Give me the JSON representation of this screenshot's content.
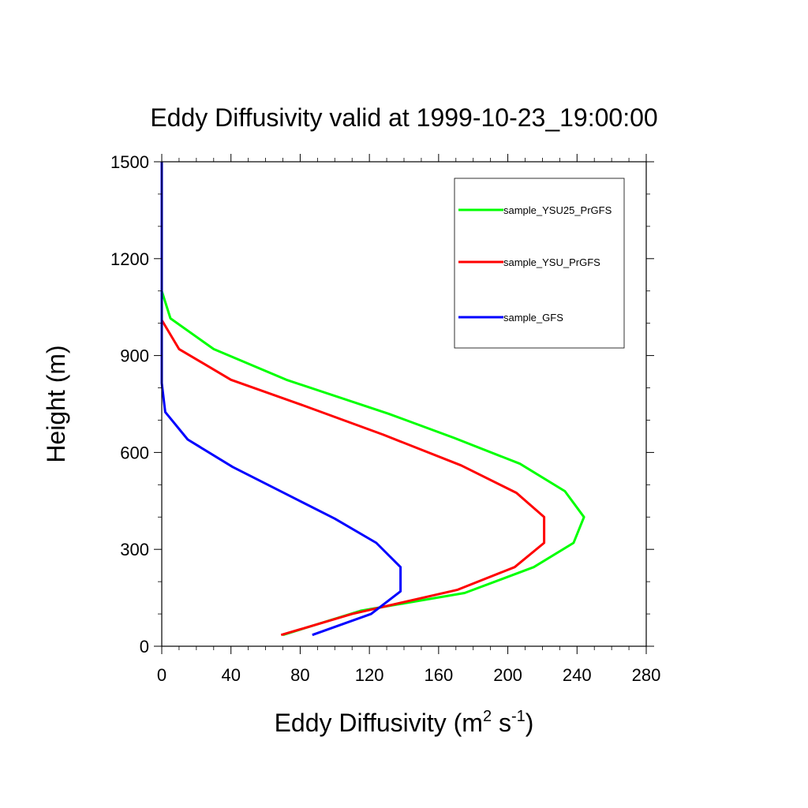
{
  "chart_data": {
    "type": "line",
    "title": "Eddy Diffusivity valid at 1999-10-23_19:00:00",
    "xlabel": {
      "base": "Eddy Diffusivity (m",
      "sup1": "2",
      "mid": " s",
      "sup2": "-1",
      "end": ")"
    },
    "ylabel": "Height (m)",
    "xlim": [
      0,
      280
    ],
    "ylim": [
      0,
      1500
    ],
    "x_ticks": [
      0,
      40,
      80,
      120,
      160,
      200,
      240,
      280
    ],
    "y_ticks": [
      0,
      300,
      600,
      900,
      1200,
      1500
    ],
    "x_tick_labels": [
      "0",
      "40",
      "80",
      "120",
      "160",
      "200",
      "240",
      "280"
    ],
    "y_tick_labels": [
      "0",
      "300",
      "600",
      "900",
      "1200",
      "1500"
    ],
    "legend_position": "top-right",
    "series": [
      {
        "name": "sample_YSU25_PrGFS",
        "color": "#00ff00",
        "points": [
          [
            70,
            35
          ],
          [
            115,
            110
          ],
          [
            175,
            165
          ],
          [
            215,
            245
          ],
          [
            238,
            320
          ],
          [
            244,
            400
          ],
          [
            233,
            480
          ],
          [
            207,
            565
          ],
          [
            169,
            645
          ],
          [
            131,
            720
          ],
          [
            72,
            825
          ],
          [
            30,
            920
          ],
          [
            5,
            1015
          ],
          [
            0,
            1100
          ],
          [
            0,
            1200
          ],
          [
            0,
            1300
          ],
          [
            0,
            1400
          ],
          [
            0,
            1500
          ]
        ]
      },
      {
        "name": "sample_YSU_PrGFS",
        "color": "#ff0000",
        "points": [
          [
            69,
            35
          ],
          [
            110,
            100
          ],
          [
            171,
            175
          ],
          [
            204,
            245
          ],
          [
            221,
            320
          ],
          [
            221,
            400
          ],
          [
            205,
            475
          ],
          [
            173,
            560
          ],
          [
            128,
            655
          ],
          [
            82,
            745
          ],
          [
            40,
            825
          ],
          [
            10,
            920
          ],
          [
            0,
            1010
          ],
          [
            0,
            1100
          ],
          [
            0,
            1200
          ],
          [
            0,
            1300
          ],
          [
            0,
            1400
          ],
          [
            0,
            1500
          ]
        ]
      },
      {
        "name": "sample_GFS",
        "color": "#0000ff",
        "points": [
          [
            87,
            35
          ],
          [
            121,
            100
          ],
          [
            138,
            170
          ],
          [
            138,
            245
          ],
          [
            124,
            320
          ],
          [
            100,
            395
          ],
          [
            41,
            555
          ],
          [
            15,
            640
          ],
          [
            2,
            725
          ],
          [
            0,
            815
          ],
          [
            0,
            900
          ],
          [
            0,
            1000
          ],
          [
            0,
            1100
          ],
          [
            0,
            1200
          ],
          [
            0,
            1300
          ],
          [
            0,
            1400
          ],
          [
            0,
            1500
          ]
        ]
      }
    ]
  }
}
